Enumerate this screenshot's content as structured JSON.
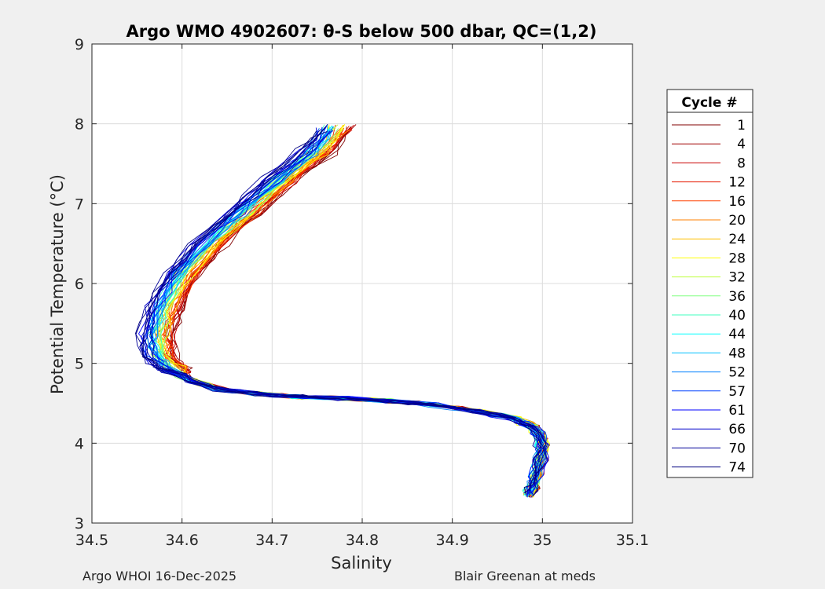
{
  "chart_data": {
    "type": "line",
    "title": "Argo WMO 4902607: θ-S below 500 dbar,  QC=(1,2)",
    "xlabel": "Salinity",
    "ylabel": "Potential Temperature (°C)",
    "xlim": [
      34.5,
      35.1
    ],
    "ylim": [
      3,
      9
    ],
    "xticks": [
      "34.5",
      "34.6",
      "34.7",
      "34.8",
      "34.9",
      "35",
      "35.1"
    ],
    "yticks": [
      "3",
      "4",
      "5",
      "6",
      "7",
      "8",
      "9"
    ],
    "grid": true,
    "legend": {
      "title": "Cycle #",
      "placement": "outside-right",
      "entries": [
        {
          "label": "1",
          "color": "#800000"
        },
        {
          "label": "4",
          "color": "#a00000"
        },
        {
          "label": "8",
          "color": "#c80000"
        },
        {
          "label": "12",
          "color": "#e61a00"
        },
        {
          "label": "16",
          "color": "#ff4000"
        },
        {
          "label": "20",
          "color": "#ff8000"
        },
        {
          "label": "24",
          "color": "#ffbf00"
        },
        {
          "label": "28",
          "color": "#ffff00"
        },
        {
          "label": "32",
          "color": "#bfff40"
        },
        {
          "label": "36",
          "color": "#80ff80"
        },
        {
          "label": "40",
          "color": "#40ffbf"
        },
        {
          "label": "44",
          "color": "#00ffff"
        },
        {
          "label": "48",
          "color": "#00c0ff"
        },
        {
          "label": "52",
          "color": "#0080ff"
        },
        {
          "label": "57",
          "color": "#0040ff"
        },
        {
          "label": "61",
          "color": "#0000ff"
        },
        {
          "label": "66",
          "color": "#0000cc"
        },
        {
          "label": "70",
          "color": "#000099"
        },
        {
          "label": "74",
          "color": "#000080"
        }
      ]
    },
    "profile_shape": {
      "s": [
        34.985,
        34.99,
        34.995,
        35.0,
        34.999,
        34.99,
        34.97,
        34.93,
        34.88,
        34.83,
        34.78,
        34.73,
        34.68,
        34.64,
        34.61,
        34.59,
        34.575,
        34.572,
        34.58,
        34.6,
        34.63,
        34.67,
        34.71,
        34.75,
        34.77
      ],
      "t": [
        3.35,
        3.5,
        3.7,
        3.9,
        4.05,
        4.2,
        4.3,
        4.4,
        4.48,
        4.53,
        4.56,
        4.58,
        4.62,
        4.68,
        4.78,
        4.92,
        5.1,
        5.35,
        5.7,
        6.1,
        6.5,
        6.9,
        7.3,
        7.65,
        7.95
      ]
    }
  },
  "footer": {
    "left": "Argo WHOI 16-Dec-2025",
    "right": "Blair Greenan at meds"
  }
}
